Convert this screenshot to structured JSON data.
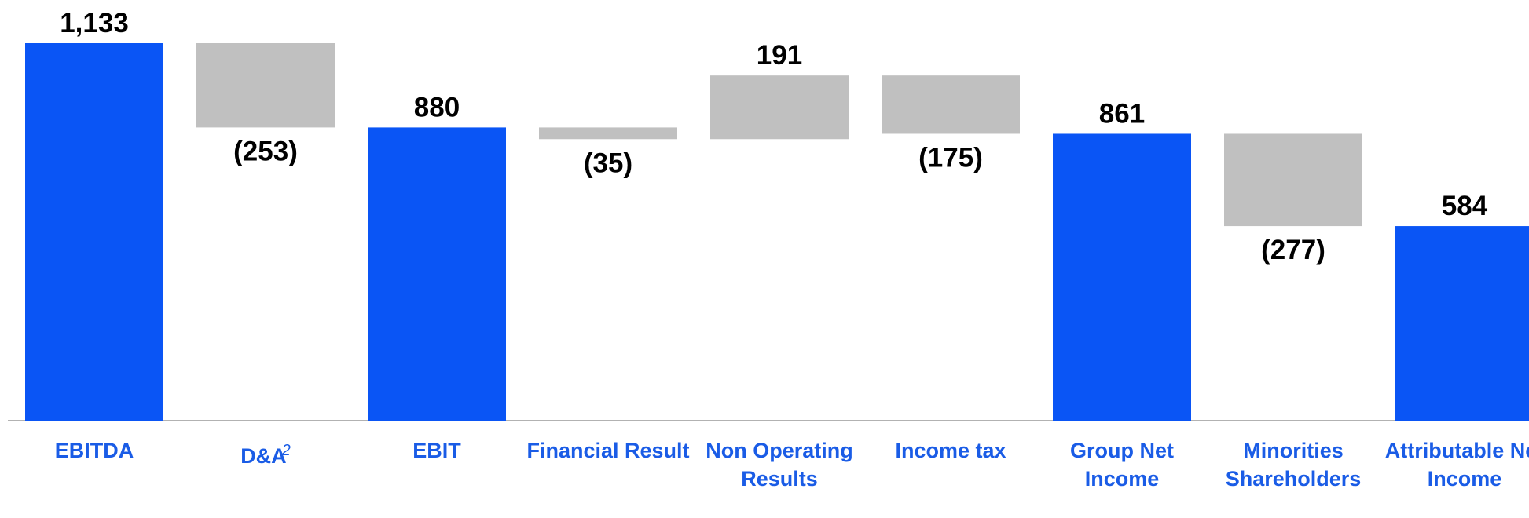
{
  "chart_data": {
    "type": "waterfall",
    "categories": [
      "EBITDA",
      "D&A",
      "EBIT",
      "Financial Result",
      "Non Operating Results",
      "Income tax",
      "Group Net Income",
      "Minorities Shareholders",
      "Attributable Net Income"
    ],
    "category_notes": [
      null,
      "2",
      null,
      null,
      null,
      null,
      null,
      null,
      null
    ],
    "measure": [
      "total",
      "relative",
      "total",
      "relative",
      "relative",
      "relative",
      "total",
      "relative",
      "total"
    ],
    "values": [
      1133,
      -253,
      880,
      -35,
      191,
      -175,
      861,
      -277,
      584
    ],
    "value_labels": [
      "1,133",
      "(253)",
      "880",
      "(35)",
      "191",
      "(175)",
      "861",
      "(277)",
      "584"
    ],
    "total_color": "#0a55f5",
    "delta_color": "#c0c0c0",
    "label_color": "#1a5ce6"
  }
}
